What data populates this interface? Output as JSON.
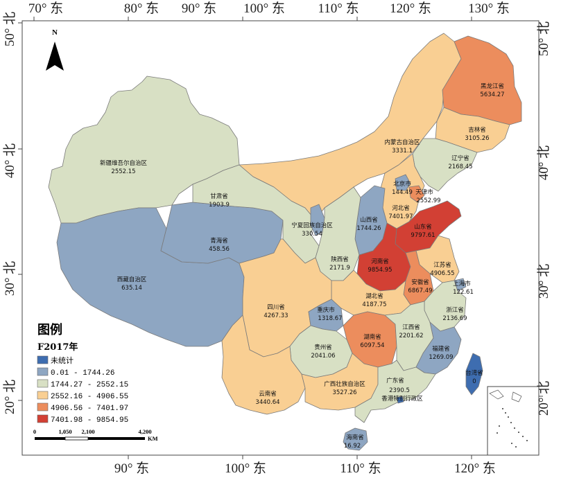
{
  "axes": {
    "top_ticks": [
      "70° 东",
      "80° 东",
      "90° 东",
      "100° 东",
      "110° 东",
      "120° 东",
      "130° 东"
    ],
    "bottom_ticks": [
      "90° 东",
      "100° 东",
      "110° 东",
      "120° 东"
    ],
    "left_ticks": [
      "50° 北",
      "40° 北",
      "30° 北",
      "20° 北"
    ],
    "right_ticks": [
      "50° 北",
      "40° 北",
      "30° 北",
      "20° 北"
    ]
  },
  "north_arrow": {
    "label": "N"
  },
  "legend": {
    "title": "图例",
    "subtitle": "F2017年",
    "classes": [
      {
        "label": "未统计",
        "color": "#3e6db0"
      },
      {
        "label": "0.01 - 1744.26",
        "color": "#8ea6c2"
      },
      {
        "label": "1744.27 - 2552.15",
        "color": "#d8e0c4"
      },
      {
        "label": "2552.16 - 4906.55",
        "color": "#f9cf93"
      },
      {
        "label": "4906.56 - 7401.97",
        "color": "#ec8d5d"
      },
      {
        "label": "7401.98 - 9854.95",
        "color": "#d24034"
      }
    ]
  },
  "scale_bar": {
    "labels": [
      "0",
      "1,050",
      "2,100",
      "4,200"
    ],
    "unit": "KM"
  },
  "provinces": [
    {
      "name": "新疆维吾尔自治区",
      "value": "2552.15",
      "class": 2
    },
    {
      "name": "西藏自治区",
      "value": "635.14",
      "class": 1
    },
    {
      "name": "青海省",
      "value": "458.56",
      "class": 1
    },
    {
      "name": "甘肃省",
      "value": "1903.9",
      "class": 2
    },
    {
      "name": "内蒙古自治区",
      "value": "3331.1",
      "class": 3
    },
    {
      "name": "黑龙江省",
      "value": "5634.27",
      "class": 4
    },
    {
      "name": "吉林省",
      "value": "3105.26",
      "class": 3
    },
    {
      "name": "辽宁省",
      "value": "2168.45",
      "class": 2
    },
    {
      "name": "北京市",
      "value": "144.49",
      "class": 1
    },
    {
      "name": "天津市",
      "value": "2552.99",
      "class": 3
    },
    {
      "name": "河北省",
      "value": "7401.97",
      "class": 4
    },
    {
      "name": "山东省",
      "value": "9797.61",
      "class": 5
    },
    {
      "name": "山西省",
      "value": "1744.26",
      "class": 1
    },
    {
      "name": "宁夏回族自治区",
      "value": "330.54",
      "class": 1
    },
    {
      "name": "陕西省",
      "value": "2171.9",
      "class": 2
    },
    {
      "name": "河南省",
      "value": "9854.95",
      "class": 5
    },
    {
      "name": "江苏省",
      "value": "4906.55",
      "class": 3
    },
    {
      "name": "安徽省",
      "value": "6867.49",
      "class": 4
    },
    {
      "name": "上海市",
      "value": "122.61",
      "class": 1
    },
    {
      "name": "湖北省",
      "value": "4187.75",
      "class": 3
    },
    {
      "name": "浙江省",
      "value": "2136.69",
      "class": 2
    },
    {
      "name": "四川省",
      "value": "4267.33",
      "class": 3
    },
    {
      "name": "重庆市",
      "value": "1318.67",
      "class": 1
    },
    {
      "name": "湖南省",
      "value": "6097.54",
      "class": 4
    },
    {
      "name": "江西省",
      "value": "2201.62",
      "class": 2
    },
    {
      "name": "贵州省",
      "value": "2041.06",
      "class": 2
    },
    {
      "name": "福建省",
      "value": "1269.09",
      "class": 1
    },
    {
      "name": "云南省",
      "value": "3440.64",
      "class": 3
    },
    {
      "name": "广西壮族自治区",
      "value": "3527.26",
      "class": 3
    },
    {
      "name": "广东省",
      "value": "2390.5",
      "class": 2
    },
    {
      "name": "香港特别行政区",
      "value": "",
      "class": 0
    },
    {
      "name": "台湾省",
      "value": "0",
      "class": 0
    },
    {
      "name": "海南省",
      "value": "16.92",
      "class": 1
    }
  ]
}
